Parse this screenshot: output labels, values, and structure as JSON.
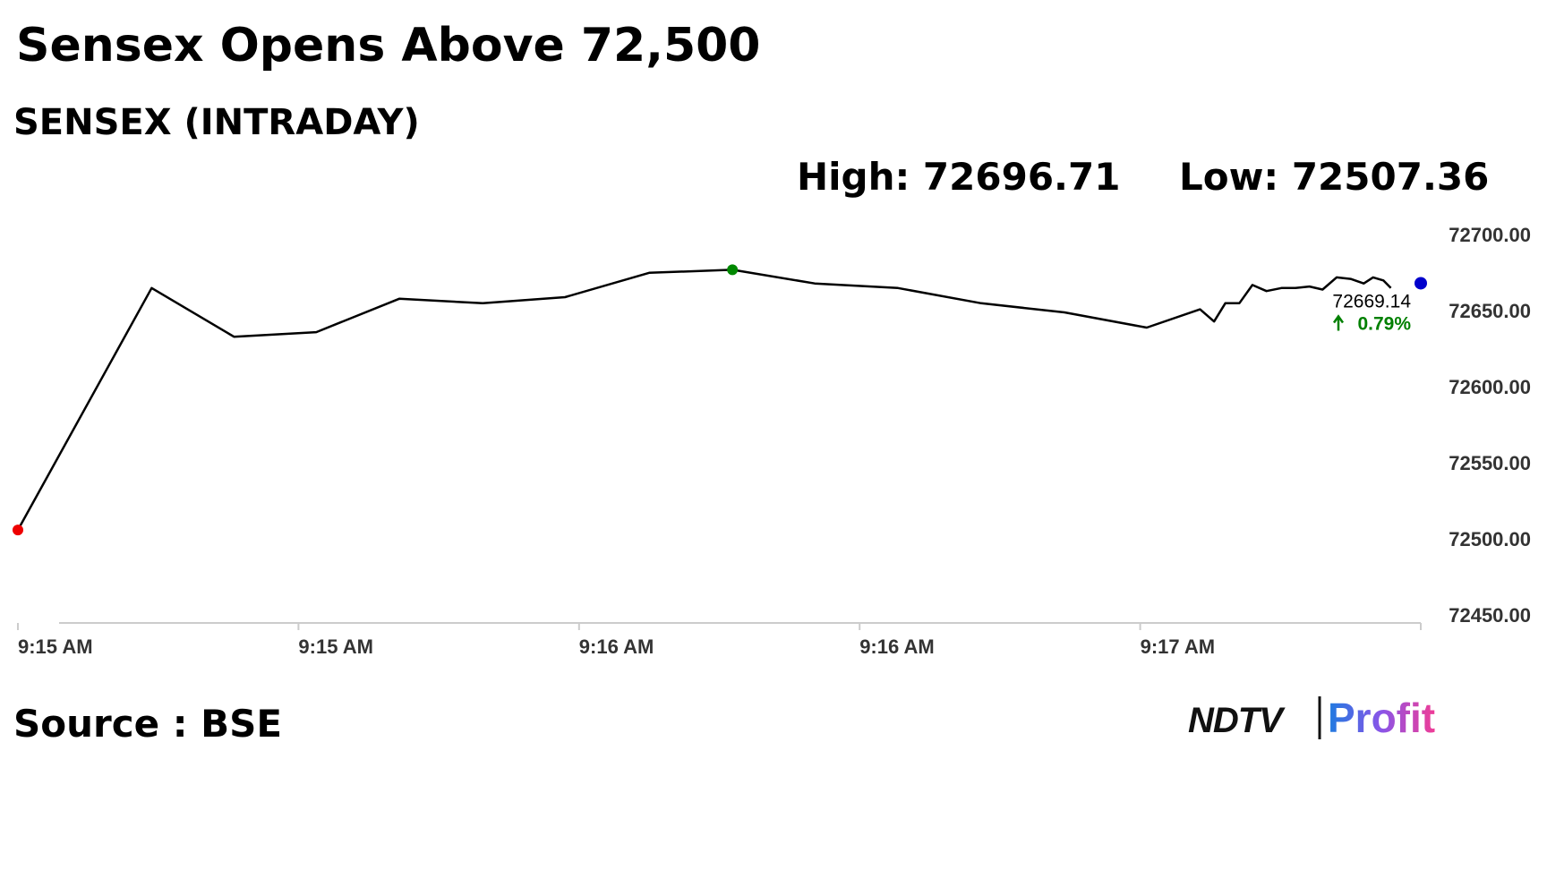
{
  "chart_data": {
    "type": "line",
    "title": "Sensex Opens Above 72,500",
    "subtitle": "SENSEX (INTRADAY)",
    "high_label": "High: 72696.71",
    "low_label": "Low: 72507.36",
    "source": "Source : BSE",
    "logo": {
      "brand": "NDTV",
      "product": "Profit"
    },
    "x": [
      0,
      14.3,
      23.1,
      31.9,
      40.8,
      49.7,
      58.5,
      67.5,
      76.4,
      85.2,
      94.1,
      103.0,
      111.9,
      120.7,
      126.4,
      127.9,
      129.1,
      130.6,
      132.0,
      133.5,
      135.1,
      136.6,
      138.1,
      139.5,
      141.0,
      142.5,
      143.9,
      144.9,
      146.0,
      146.8
    ],
    "series": [
      {
        "color": "#000000",
        "values": [
          72507,
          72666,
          72634,
          72637,
          72659,
          72656,
          72660,
          72676,
          72678,
          72669,
          72666,
          72656,
          72650,
          72640,
          72652,
          72644,
          72656,
          72656,
          72668,
          72664,
          72666,
          72666,
          72667,
          72665,
          72673,
          72672,
          72669,
          72673,
          72671,
          72666
        ]
      }
    ],
    "current": {
      "x": 150,
      "value": 72669.14,
      "change": "0.79%",
      "color": "#0000cc",
      "change_color": "#008000"
    },
    "start_marker_color": "#ee0000",
    "peak_marker_color": "#008800",
    "xlim": [
      0,
      150
    ],
    "xticks": [
      {
        "value": 0,
        "label": "9:15 AM"
      },
      {
        "value": 30,
        "label": "9:15 AM"
      },
      {
        "value": 60,
        "label": "9:16 AM"
      },
      {
        "value": 90,
        "label": "9:16 AM"
      },
      {
        "value": 120,
        "label": "9:17 AM"
      },
      {
        "value": 150,
        "label": null
      }
    ],
    "ylim": [
      72450,
      72700
    ],
    "yticks": [
      {
        "value": 72700,
        "label": "72700.00"
      },
      {
        "value": 72650,
        "label": "72650.00"
      },
      {
        "value": 72600,
        "label": "72600.00"
      },
      {
        "value": 72550,
        "label": "72550.00"
      },
      {
        "value": 72500,
        "label": "72500.00"
      },
      {
        "value": 72450,
        "label": "72450.00"
      }
    ]
  }
}
